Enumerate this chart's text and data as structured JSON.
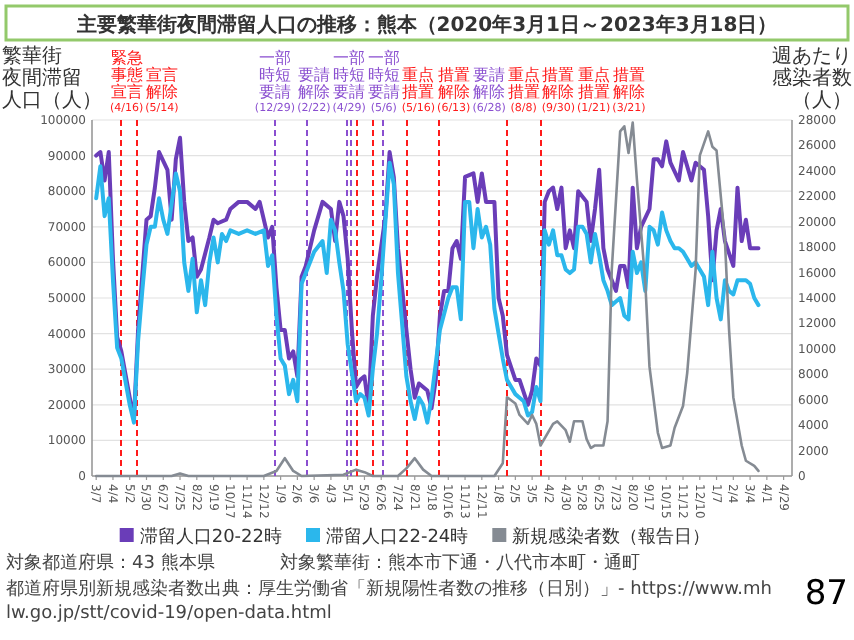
{
  "chart_data": {
    "type": "line",
    "title": "主要繁華街夜間滞留人口の推移：熊本（2020年3月1日～2023年3月18日）",
    "ylabel": "繁華街夜間滞留人口（人）",
    "y2label": "週あたり感染者数（人）",
    "xlim": [
      "2020-02-29",
      "2023-05-13"
    ],
    "xticks": [
      {
        "value": "2020-03-07",
        "label": "3/7"
      },
      {
        "value": "2020-04-04",
        "label": "4/4"
      },
      {
        "value": "2020-05-02",
        "label": "5/2"
      },
      {
        "value": "2020-05-30",
        "label": "5/30"
      },
      {
        "value": "2020-06-27",
        "label": "6/27"
      },
      {
        "value": "2020-07-25",
        "label": "7/25"
      },
      {
        "value": "2020-08-22",
        "label": "8/22"
      },
      {
        "value": "2020-09-19",
        "label": "9/19"
      },
      {
        "value": "2020-10-17",
        "label": "10/17"
      },
      {
        "value": "2020-11-14",
        "label": "11/14"
      },
      {
        "value": "2020-12-12",
        "label": "12/12"
      },
      {
        "value": "2021-01-09",
        "label": "1/9"
      },
      {
        "value": "2021-02-06",
        "label": "2/6"
      },
      {
        "value": "2021-03-06",
        "label": "3/6"
      },
      {
        "value": "2021-04-03",
        "label": "4/3"
      },
      {
        "value": "2021-05-01",
        "label": "5/1"
      },
      {
        "value": "2021-05-29",
        "label": "5/29"
      },
      {
        "value": "2021-06-26",
        "label": "6/26"
      },
      {
        "value": "2021-07-24",
        "label": "7/24"
      },
      {
        "value": "2021-08-21",
        "label": "8/21"
      },
      {
        "value": "2021-09-18",
        "label": "9/18"
      },
      {
        "value": "2021-10-16",
        "label": "10/16"
      },
      {
        "value": "2021-11-13",
        "label": "11/13"
      },
      {
        "value": "2021-12-11",
        "label": "12/11"
      },
      {
        "value": "2022-01-08",
        "label": "1/8"
      },
      {
        "value": "2022-02-05",
        "label": "2/5"
      },
      {
        "value": "2022-03-05",
        "label": "3/5"
      },
      {
        "value": "2022-04-02",
        "label": "4/2"
      },
      {
        "value": "2022-04-30",
        "label": "4/30"
      },
      {
        "value": "2022-05-28",
        "label": "5/28"
      },
      {
        "value": "2022-06-25",
        "label": "6/25"
      },
      {
        "value": "2022-07-23",
        "label": "7/23"
      },
      {
        "value": "2022-08-20",
        "label": "8/20"
      },
      {
        "value": "2022-09-17",
        "label": "9/17"
      },
      {
        "value": "2022-10-15",
        "label": "10/15"
      },
      {
        "value": "2022-11-12",
        "label": "11/12"
      },
      {
        "value": "2022-12-10",
        "label": "12/10"
      },
      {
        "value": "2023-01-07",
        "label": "1/7"
      },
      {
        "value": "2023-02-04",
        "label": "2/4"
      },
      {
        "value": "2023-03-04",
        "label": "3/4"
      },
      {
        "value": "2023-04-01",
        "label": "4/1"
      },
      {
        "value": "2023-04-29",
        "label": "4/29"
      }
    ],
    "ylim": [
      0,
      100000
    ],
    "yticks": [
      0,
      10000,
      20000,
      30000,
      40000,
      50000,
      60000,
      70000,
      80000,
      90000,
      100000
    ],
    "y2lim": [
      0,
      28000
    ],
    "y2ticks": [
      0,
      2000,
      4000,
      6000,
      8000,
      10000,
      12000,
      14000,
      16000,
      18000,
      20000,
      22000,
      24000,
      26000,
      28000
    ],
    "grid": "y",
    "legend": "bottom",
    "series": [
      {
        "name": "滞留人口20-22時",
        "color": "#6a3db8",
        "x": [
          "2020-03-07",
          "2020-03-14",
          "2020-03-21",
          "2020-03-28",
          "2020-04-04",
          "2020-04-11",
          "2020-04-18",
          "2020-05-02",
          "2020-05-09",
          "2020-05-16",
          "2020-05-30",
          "2020-06-06",
          "2020-06-13",
          "2020-06-20",
          "2020-07-04",
          "2020-07-11",
          "2020-07-18",
          "2020-07-25",
          "2020-08-01",
          "2020-08-08",
          "2020-08-15",
          "2020-08-22",
          "2020-08-29",
          "2020-09-12",
          "2020-09-19",
          "2020-09-26",
          "2020-10-10",
          "2020-10-17",
          "2020-10-31",
          "2020-11-14",
          "2020-11-28",
          "2020-12-05",
          "2020-12-19",
          "2020-12-26",
          "2021-01-02",
          "2021-01-09",
          "2021-01-16",
          "2021-01-23",
          "2021-01-30",
          "2021-02-06",
          "2021-02-13",
          "2021-02-20",
          "2021-03-06",
          "2021-03-20",
          "2021-04-03",
          "2021-04-10",
          "2021-04-17",
          "2021-04-24",
          "2021-05-01",
          "2021-05-08",
          "2021-05-15",
          "2021-05-22",
          "2021-05-29",
          "2021-06-05",
          "2021-06-12",
          "2021-06-19",
          "2021-07-03",
          "2021-07-10",
          "2021-07-17",
          "2021-07-24",
          "2021-08-07",
          "2021-08-14",
          "2021-08-21",
          "2021-08-28",
          "2021-09-11",
          "2021-09-18",
          "2021-09-25",
          "2021-10-02",
          "2021-10-09",
          "2021-10-16",
          "2021-10-23",
          "2021-10-30",
          "2021-11-06",
          "2021-11-13",
          "2021-11-27",
          "2021-12-04",
          "2021-12-11",
          "2021-12-18",
          "2022-01-01",
          "2022-01-08",
          "2022-01-15",
          "2022-01-22",
          "2022-02-05",
          "2022-02-12",
          "2022-02-26",
          "2022-03-05",
          "2022-03-12",
          "2022-03-19",
          "2022-03-26",
          "2022-04-02",
          "2022-04-09",
          "2022-04-16",
          "2022-04-23",
          "2022-04-30",
          "2022-05-07",
          "2022-05-14",
          "2022-05-21",
          "2022-06-04",
          "2022-06-11",
          "2022-06-18",
          "2022-06-25",
          "2022-07-02",
          "2022-07-09",
          "2022-07-23",
          "2022-07-30",
          "2022-08-06",
          "2022-08-13",
          "2022-08-20",
          "2022-08-27",
          "2022-09-03",
          "2022-09-17",
          "2022-09-24",
          "2022-10-01",
          "2022-10-08",
          "2022-10-15",
          "2022-10-22",
          "2022-11-05",
          "2022-11-12",
          "2022-11-26",
          "2022-12-03",
          "2022-12-17",
          "2022-12-24",
          "2022-12-31",
          "2023-01-07",
          "2023-01-14",
          "2023-01-21",
          "2023-02-04",
          "2023-02-11",
          "2023-02-18",
          "2023-02-25",
          "2023-03-04",
          "2023-03-18"
        ],
        "values": [
          90000,
          91000,
          83000,
          91000,
          61000,
          39000,
          35000,
          22000,
          16000,
          41000,
          72000,
          73000,
          81000,
          91000,
          86000,
          72000,
          89000,
          95000,
          77000,
          66000,
          67000,
          56000,
          58000,
          67000,
          72000,
          71000,
          72000,
          75000,
          77000,
          77000,
          75000,
          77000,
          67000,
          70000,
          53000,
          41000,
          41000,
          33000,
          35000,
          28000,
          56000,
          59000,
          69000,
          77000,
          75000,
          66000,
          77000,
          73000,
          61000,
          41000,
          25000,
          27000,
          28000,
          19000,
          45000,
          56000,
          73000,
          91000,
          84000,
          64000,
          41000,
          30000,
          22000,
          26000,
          24000,
          19000,
          27000,
          45000,
          52000,
          52000,
          64000,
          66000,
          61000,
          84000,
          85000,
          77000,
          85000,
          77000,
          77000,
          50000,
          45000,
          34000,
          27000,
          27000,
          20000,
          24000,
          33000,
          31000,
          77000,
          80000,
          81000,
          75000,
          81000,
          64000,
          69000,
          64000,
          80000,
          77000,
          66000,
          75000,
          86000,
          64000,
          58000,
          52000,
          59000,
          59000,
          53000,
          81000,
          64000,
          70000,
          75000,
          89000,
          89000,
          87000,
          94000,
          88000,
          83000,
          91000,
          83000,
          88000,
          86000,
          73000,
          55000,
          69000,
          75000,
          66000,
          59000,
          81000,
          66000,
          72000,
          64000,
          64000
        ]
      },
      {
        "name": "滞留人口22-24時",
        "color": "#2bb7ec",
        "x": [
          "2020-03-07",
          "2020-03-14",
          "2020-03-21",
          "2020-03-28",
          "2020-04-04",
          "2020-04-11",
          "2020-04-18",
          "2020-05-02",
          "2020-05-09",
          "2020-05-16",
          "2020-05-23",
          "2020-05-30",
          "2020-06-06",
          "2020-06-13",
          "2020-06-20",
          "2020-06-27",
          "2020-07-04",
          "2020-07-18",
          "2020-07-25",
          "2020-08-01",
          "2020-08-08",
          "2020-08-15",
          "2020-08-22",
          "2020-08-29",
          "2020-09-05",
          "2020-09-12",
          "2020-09-19",
          "2020-09-26",
          "2020-10-03",
          "2020-10-10",
          "2020-10-17",
          "2020-10-31",
          "2020-11-14",
          "2020-11-28",
          "2020-12-12",
          "2020-12-19",
          "2020-12-26",
          "2021-01-02",
          "2021-01-09",
          "2021-01-16",
          "2021-01-23",
          "2021-01-30",
          "2021-02-06",
          "2021-02-13",
          "2021-02-20",
          "2021-03-06",
          "2021-03-20",
          "2021-03-27",
          "2021-04-03",
          "2021-04-10",
          "2021-04-17",
          "2021-04-24",
          "2021-05-01",
          "2021-05-15",
          "2021-05-22",
          "2021-05-29",
          "2021-06-05",
          "2021-06-12",
          "2021-06-19",
          "2021-06-26",
          "2021-07-10",
          "2021-07-17",
          "2021-07-24",
          "2021-08-07",
          "2021-08-14",
          "2021-08-21",
          "2021-08-28",
          "2021-09-04",
          "2021-09-11",
          "2021-09-18",
          "2021-10-02",
          "2021-10-16",
          "2021-10-23",
          "2021-10-30",
          "2021-11-06",
          "2021-11-13",
          "2021-11-20",
          "2021-11-27",
          "2021-12-04",
          "2021-12-11",
          "2021-12-18",
          "2021-12-25",
          "2022-01-01",
          "2022-01-08",
          "2022-01-15",
          "2022-01-22",
          "2022-02-05",
          "2022-02-12",
          "2022-02-19",
          "2022-02-26",
          "2022-03-05",
          "2022-03-12",
          "2022-03-19",
          "2022-03-26",
          "2022-04-02",
          "2022-04-09",
          "2022-04-16",
          "2022-04-23",
          "2022-04-30",
          "2022-05-07",
          "2022-05-14",
          "2022-05-21",
          "2022-05-28",
          "2022-06-04",
          "2022-06-11",
          "2022-06-18",
          "2022-06-25",
          "2022-07-02",
          "2022-07-09",
          "2022-07-16",
          "2022-07-23",
          "2022-07-30",
          "2022-08-06",
          "2022-08-13",
          "2022-08-20",
          "2022-08-27",
          "2022-09-03",
          "2022-09-10",
          "2022-09-17",
          "2022-09-24",
          "2022-10-01",
          "2022-10-08",
          "2022-10-15",
          "2022-10-22",
          "2022-10-29",
          "2022-11-05",
          "2022-11-12",
          "2022-11-19",
          "2022-11-26",
          "2022-12-03",
          "2022-12-10",
          "2022-12-17",
          "2022-12-24",
          "2022-12-31",
          "2023-01-07",
          "2023-01-14",
          "2023-01-21",
          "2023-01-28",
          "2023-02-04",
          "2023-02-11",
          "2023-02-18",
          "2023-02-25",
          "2023-03-04",
          "2023-03-11",
          "2023-03-18"
        ],
        "values": [
          78000,
          87000,
          73000,
          78000,
          55000,
          36000,
          33000,
          20000,
          15000,
          38000,
          52000,
          65000,
          70000,
          70000,
          78000,
          72000,
          68000,
          85000,
          80000,
          60000,
          52000,
          61000,
          46000,
          55000,
          48000,
          60000,
          67000,
          60000,
          68000,
          66000,
          69000,
          68000,
          69000,
          68000,
          69000,
          59000,
          62000,
          45000,
          33000,
          31000,
          23000,
          27000,
          21000,
          54000,
          57000,
          63000,
          66000,
          57000,
          72000,
          69000,
          60000,
          52000,
          37000,
          21000,
          23000,
          22000,
          17000,
          30000,
          40000,
          55000,
          88000,
          82000,
          57000,
          28000,
          21000,
          16000,
          22000,
          20000,
          15000,
          22000,
          41000,
          50000,
          53000,
          53000,
          44000,
          77000,
          77000,
          64000,
          75000,
          67000,
          70000,
          65000,
          47000,
          40000,
          33000,
          27000,
          23000,
          22000,
          21000,
          17000,
          18000,
          25000,
          21000,
          69000,
          65000,
          69000,
          62000,
          62000,
          58000,
          57000,
          58000,
          70000,
          70000,
          68000,
          60000,
          68000,
          62000,
          55000,
          52000,
          48000,
          49000,
          50000,
          45000,
          44000,
          63000,
          57000,
          60000,
          52000,
          70000,
          69000,
          65000,
          74000,
          69000,
          66000,
          64000,
          64000,
          63000,
          61000,
          59000,
          60000,
          58000,
          56000,
          48000,
          63000,
          50000,
          44000,
          55000,
          52000,
          51000,
          55000,
          55000,
          55000,
          54000,
          50000,
          48000
        ]
      },
      {
        "name": "新規感染者数（報告日）",
        "color": "#858b93",
        "axis": "y2",
        "x": [
          "2020-03-07",
          "2020-07-11",
          "2020-07-25",
          "2020-08-08",
          "2020-12-12",
          "2021-01-02",
          "2021-01-16",
          "2021-01-30",
          "2021-02-13",
          "2021-04-24",
          "2021-05-15",
          "2021-05-29",
          "2021-06-12",
          "2021-07-24",
          "2021-08-07",
          "2021-08-21",
          "2021-09-04",
          "2021-09-18",
          "2022-01-01",
          "2022-01-15",
          "2022-01-22",
          "2022-02-05",
          "2022-02-12",
          "2022-02-26",
          "2022-03-05",
          "2022-03-12",
          "2022-03-19",
          "2022-04-09",
          "2022-04-16",
          "2022-04-30",
          "2022-05-07",
          "2022-05-14",
          "2022-05-28",
          "2022-06-04",
          "2022-06-11",
          "2022-06-18",
          "2022-07-02",
          "2022-07-09",
          "2022-07-16",
          "2022-07-30",
          "2022-08-06",
          "2022-08-13",
          "2022-08-20",
          "2022-08-27",
          "2022-09-10",
          "2022-09-17",
          "2022-10-01",
          "2022-10-08",
          "2022-10-22",
          "2022-10-29",
          "2022-11-12",
          "2022-11-19",
          "2022-12-03",
          "2022-12-10",
          "2022-12-24",
          "2022-12-31",
          "2023-01-07",
          "2023-01-21",
          "2023-01-28",
          "2023-02-04",
          "2023-02-18",
          "2023-02-25",
          "2023-03-11",
          "2023-03-18"
        ],
        "values": [
          0,
          0,
          200,
          0,
          0,
          400,
          1400,
          400,
          0,
          100,
          500,
          300,
          0,
          0,
          600,
          1400,
          500,
          0,
          0,
          1000,
          6200,
          5700,
          4800,
          4100,
          4800,
          4100,
          2400,
          4100,
          4300,
          3600,
          2700,
          4300,
          4300,
          2900,
          2200,
          2400,
          2400,
          4300,
          16200,
          27100,
          27500,
          25400,
          27800,
          23300,
          15200,
          8600,
          3400,
          2200,
          2400,
          3800,
          5500,
          8100,
          16200,
          25200,
          27100,
          25900,
          25600,
          18500,
          11400,
          6200,
          2400,
          1200,
          800,
          400
        ]
      }
    ],
    "ref_lines": [
      {
        "axis": "x",
        "value": "2020-04-16",
        "label": "緊急事態宣言(4/16)",
        "color": "#ff1a1a",
        "line_style": "dashed"
      },
      {
        "axis": "x",
        "value": "2020-05-14",
        "label": "宣言解除(5/14)",
        "color": "#ff1a1a",
        "line_style": "dashed"
      },
      {
        "axis": "x",
        "value": "2020-12-29",
        "label": "一部時短要請(12/29)",
        "color": "#8a4fd0",
        "line_style": "dashed"
      },
      {
        "axis": "x",
        "value": "2021-02-22",
        "label": "要請解除(2/22)",
        "color": "#8a4fd0",
        "line_style": "dashed"
      },
      {
        "axis": "x",
        "value": "2021-04-29",
        "label": "一部時短要請(4/29)",
        "color": "#8a4fd0",
        "line_style": "dashed"
      },
      {
        "axis": "x",
        "value": "2021-05-06",
        "label": "一部時短要請(5/6)",
        "color": "#8a4fd0",
        "line_style": "dashed"
      },
      {
        "axis": "x",
        "value": "2021-05-16",
        "label": "重点措置(5/16)",
        "color": "#ff1a1a",
        "line_style": "dashed"
      },
      {
        "axis": "x",
        "value": "2021-06-13",
        "label": "措置解除(6/13)",
        "color": "#ff1a1a",
        "line_style": "dashed"
      },
      {
        "axis": "x",
        "value": "2021-06-28",
        "label": "要請解除(6/28)",
        "color": "#8a4fd0",
        "line_style": "dashed"
      },
      {
        "axis": "x",
        "value": "2021-08-08",
        "label": "重点措置(8/8)",
        "color": "#ff1a1a",
        "line_style": "dashed"
      },
      {
        "axis": "x",
        "value": "2021-09-30",
        "label": "措置解除(9/30)",
        "color": "#ff1a1a",
        "line_style": "dashed"
      },
      {
        "axis": "x",
        "value": "2022-01-21",
        "label": "重点措置(1/21)",
        "color": "#ff1a1a",
        "line_style": "dashed"
      },
      {
        "axis": "x",
        "value": "2022-03-21",
        "label": "措置解除(3/21)",
        "color": "#ff1a1a",
        "line_style": "dashed"
      }
    ],
    "annotations": [
      "対象都道府県：43 熊本県",
      "対象繁華街：熊本市下通・八代市本町・通町",
      "都道府県別新規感染者数出典：厚生労働省「新規陽性者数の推移（日別）」- https://www.mhlw.go.jp/stt/covid-19/open-data.html",
      "87"
    ]
  }
}
